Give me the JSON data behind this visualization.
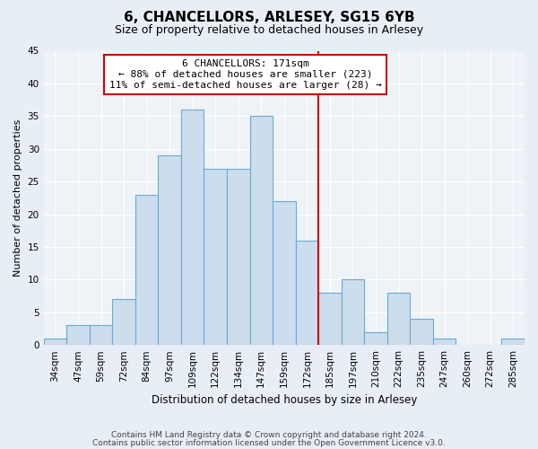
{
  "title": "6, CHANCELLORS, ARLESEY, SG15 6YB",
  "subtitle": "Size of property relative to detached houses in Arlesey",
  "xlabel": "Distribution of detached houses by size in Arlesey",
  "ylabel": "Number of detached properties",
  "bin_labels": [
    "34sqm",
    "47sqm",
    "59sqm",
    "72sqm",
    "84sqm",
    "97sqm",
    "109sqm",
    "122sqm",
    "134sqm",
    "147sqm",
    "159sqm",
    "172sqm",
    "185sqm",
    "197sqm",
    "210sqm",
    "222sqm",
    "235sqm",
    "247sqm",
    "260sqm",
    "272sqm",
    "285sqm"
  ],
  "bar_values": [
    1,
    3,
    3,
    7,
    23,
    29,
    36,
    27,
    27,
    35,
    22,
    16,
    8,
    10,
    2,
    8,
    4,
    1,
    0,
    0,
    1
  ],
  "bar_color": "#ccdded",
  "bar_edge_color": "#6aaad4",
  "vline_bin": 11,
  "vline_color": "#cc0000",
  "annotation_title": "6 CHANCELLORS: 171sqm",
  "annotation_line1": "← 88% of detached houses are smaller (223)",
  "annotation_line2": "11% of semi-detached houses are larger (28) →",
  "annotation_box_color": "#cc0000",
  "ylim": [
    0,
    45
  ],
  "yticks": [
    0,
    5,
    10,
    15,
    20,
    25,
    30,
    35,
    40,
    45
  ],
  "footnote1": "Contains HM Land Registry data © Crown copyright and database right 2024.",
  "footnote2": "Contains public sector information licensed under the Open Government Licence v3.0.",
  "bg_color": "#e8eef5",
  "plot_bg_color": "#eef3f8",
  "grid_color": "#ffffff",
  "title_fontsize": 11,
  "subtitle_fontsize": 9,
  "ylabel_fontsize": 8,
  "xlabel_fontsize": 8.5,
  "tick_fontsize": 7.5,
  "annot_fontsize": 8
}
